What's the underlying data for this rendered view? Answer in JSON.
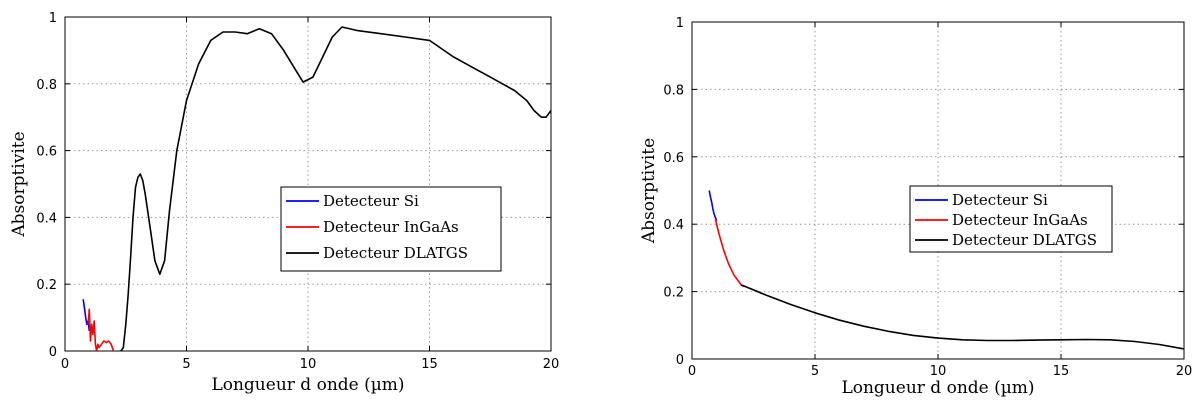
{
  "chart_data": [
    {
      "type": "line",
      "xlabel": "Longueur d onde (µm)",
      "ylabel": "Absorptivite",
      "xlim": [
        0,
        20
      ],
      "ylim": [
        0,
        1
      ],
      "xticks": [
        0,
        5,
        10,
        15,
        20
      ],
      "yticks": [
        0,
        0.2,
        0.4,
        0.6,
        0.8,
        1
      ],
      "xtick_labels": [
        "0",
        "5",
        "10",
        "15",
        "20"
      ],
      "ytick_labels": [
        "0",
        "0.2",
        "0.4",
        "0.6",
        "0.8",
        "1"
      ],
      "grid": true,
      "legend_position": "center-right",
      "series": [
        {
          "name": "Detecteur Si",
          "color": "#0000ff",
          "x": [
            0.75,
            0.8,
            0.85,
            0.9,
            0.95,
            1.0
          ],
          "y": [
            0.155,
            0.13,
            0.1,
            0.08,
            0.09,
            0.06
          ]
        },
        {
          "name": "Detecteur InGaAs",
          "color": "#ff0000",
          "x": [
            0.95,
            1.0,
            1.05,
            1.1,
            1.15,
            1.2,
            1.25,
            1.3,
            1.35,
            1.4,
            1.5,
            1.6,
            1.7,
            1.8,
            1.9,
            2.0
          ],
          "y": [
            0.08,
            0.125,
            0.03,
            0.08,
            0.05,
            0.09,
            0.02,
            0.0,
            0.02,
            0.01,
            0.02,
            0.03,
            0.025,
            0.03,
            0.02,
            0.0
          ]
        },
        {
          "name": "Detecteur DLATGS",
          "color": "#000000",
          "x": [
            2.3,
            2.4,
            2.5,
            2.6,
            2.7,
            2.8,
            2.9,
            3.0,
            3.1,
            3.2,
            3.3,
            3.5,
            3.7,
            3.9,
            4.1,
            4.3,
            4.6,
            5.0,
            5.5,
            6.0,
            6.5,
            7.0,
            7.5,
            8.0,
            8.5,
            9.0,
            9.5,
            9.8,
            10.2,
            10.6,
            11.0,
            11.4,
            12.0,
            13.0,
            14.0,
            15.0,
            16.0,
            17.0,
            17.5,
            18.0,
            18.5,
            19.0,
            19.3,
            19.6,
            19.8,
            20.0
          ],
          "y": [
            0.0,
            0.01,
            0.08,
            0.17,
            0.28,
            0.4,
            0.49,
            0.52,
            0.53,
            0.51,
            0.47,
            0.37,
            0.27,
            0.23,
            0.27,
            0.42,
            0.6,
            0.75,
            0.86,
            0.93,
            0.955,
            0.955,
            0.95,
            0.965,
            0.95,
            0.9,
            0.84,
            0.805,
            0.82,
            0.88,
            0.94,
            0.97,
            0.96,
            0.95,
            0.94,
            0.93,
            0.88,
            0.84,
            0.82,
            0.8,
            0.78,
            0.75,
            0.72,
            0.7,
            0.7,
            0.72
          ]
        }
      ]
    },
    {
      "type": "line",
      "xlabel": "Longueur d onde (µm)",
      "ylabel": "Absorptivite",
      "xlim": [
        0,
        20
      ],
      "ylim": [
        0,
        1
      ],
      "xticks": [
        0,
        5,
        10,
        15,
        20
      ],
      "yticks": [
        0,
        0.2,
        0.4,
        0.6,
        0.8,
        1
      ],
      "xtick_labels": [
        "0",
        "5",
        "10",
        "15",
        "20"
      ],
      "ytick_labels": [
        "0",
        "0.2",
        "0.4",
        "0.6",
        "0.8",
        "1"
      ],
      "grid": true,
      "legend_position": "center",
      "series": [
        {
          "name": "Detecteur Si",
          "color": "#0000ff",
          "x": [
            0.7,
            0.75,
            0.8,
            0.85,
            0.9,
            0.95,
            1.0
          ],
          "y": [
            0.5,
            0.48,
            0.465,
            0.445,
            0.43,
            0.42,
            0.41
          ]
        },
        {
          "name": "Detecteur InGaAs",
          "color": "#ff0000",
          "x": [
            0.95,
            1.0,
            1.1,
            1.2,
            1.3,
            1.4,
            1.5,
            1.6,
            1.7,
            1.8,
            1.9,
            2.0,
            2.1
          ],
          "y": [
            0.415,
            0.4,
            0.37,
            0.345,
            0.32,
            0.3,
            0.28,
            0.265,
            0.25,
            0.24,
            0.23,
            0.22,
            0.215
          ]
        },
        {
          "name": "Detecteur DLATGS",
          "color": "#000000",
          "x": [
            2.0,
            2.5,
            3.0,
            4.0,
            5.0,
            6.0,
            7.0,
            8.0,
            9.0,
            10.0,
            11.0,
            12.0,
            13.0,
            14.0,
            15.0,
            16.0,
            17.0,
            18.0,
            19.0,
            20.0
          ],
          "y": [
            0.22,
            0.205,
            0.19,
            0.162,
            0.137,
            0.115,
            0.097,
            0.082,
            0.07,
            0.062,
            0.057,
            0.055,
            0.055,
            0.056,
            0.057,
            0.058,
            0.057,
            0.052,
            0.043,
            0.03
          ]
        }
      ]
    }
  ]
}
